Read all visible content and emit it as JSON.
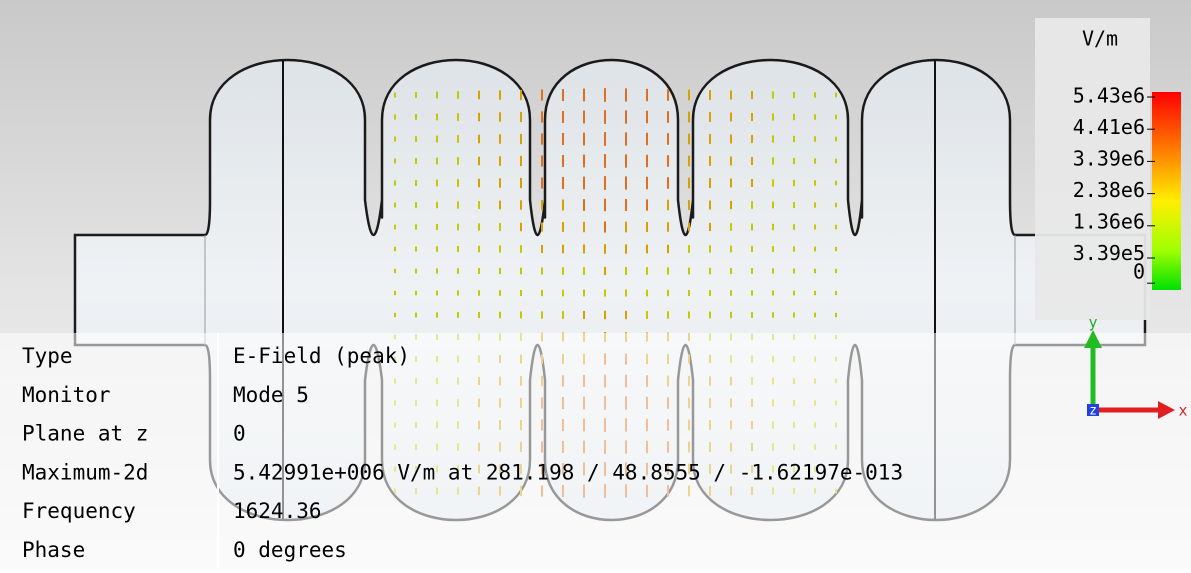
{
  "legend": {
    "unit": "V/m",
    "labels": [
      "5.43e6",
      "4.41e6",
      "3.39e6",
      "2.38e6",
      "1.36e6",
      "3.39e5",
      "0"
    ]
  },
  "info": {
    "rows": [
      [
        "Type",
        "E-Field (peak)"
      ],
      [
        "Monitor",
        "Mode 5"
      ],
      [
        "Plane at z",
        "0"
      ],
      [
        "Maximum-2d",
        "5.42991e+006 V/m at 281.198 / 48.8555 / -1.62197e-013"
      ],
      [
        "Frequency",
        "1624.36"
      ],
      [
        "Phase",
        "0 degrees"
      ]
    ]
  },
  "axes": {
    "y": "y",
    "x": "x",
    "z": "z"
  }
}
